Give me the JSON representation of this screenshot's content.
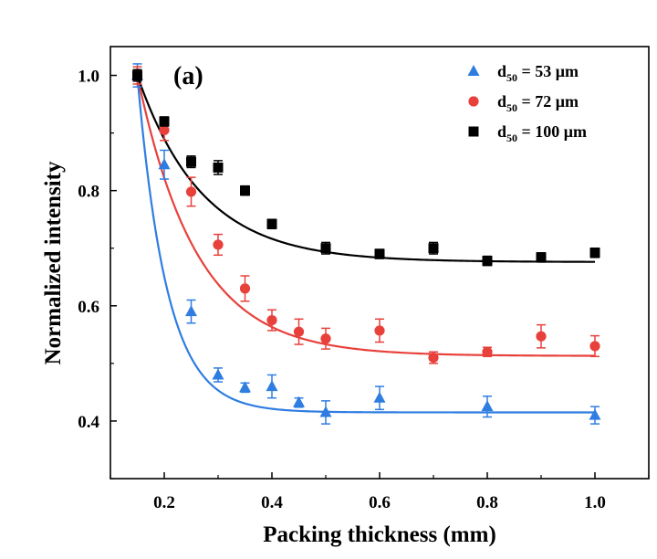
{
  "chart_data": {
    "type": "scatter",
    "panel_label": "(a)",
    "xlabel": "Packing thickness (mm)",
    "ylabel": "Normalized intensity",
    "xlim": [
      0.1,
      1.1
    ],
    "ylim": [
      0.3,
      1.05
    ],
    "x_ticks": [
      0.2,
      0.4,
      0.6,
      0.8,
      1.0
    ],
    "x_tick_labels": [
      "0.2",
      "0.4",
      "0.6",
      "0.8",
      "1.0"
    ],
    "y_ticks": [
      0.4,
      0.6,
      0.8,
      1.0
    ],
    "y_tick_labels": [
      "0.4",
      "0.6",
      "0.8",
      "1.0"
    ],
    "grid": false,
    "legend_position": "top-right",
    "series": [
      {
        "name_main": "d",
        "name_sub": "50",
        "name_rest": " = 53 μm",
        "marker": "triangle",
        "color": "#2f7de1",
        "x": [
          0.15,
          0.2,
          0.25,
          0.3,
          0.35,
          0.4,
          0.45,
          0.5,
          0.6,
          0.8,
          1.0
        ],
        "y": [
          1.0,
          0.845,
          0.59,
          0.48,
          0.458,
          0.46,
          0.432,
          0.415,
          0.44,
          0.425,
          0.41
        ],
        "err": [
          0.02,
          0.025,
          0.02,
          0.012,
          0.008,
          0.02,
          0.008,
          0.02,
          0.02,
          0.018,
          0.015
        ],
        "fit": {
          "y0": 0.415,
          "A": 0.585,
          "x0": 0.15,
          "t": 0.055
        }
      },
      {
        "name_main": "d",
        "name_sub": "50",
        "name_rest": " = 72 μm",
        "marker": "circle",
        "color": "#e8413c",
        "x": [
          0.15,
          0.2,
          0.25,
          0.3,
          0.35,
          0.4,
          0.45,
          0.5,
          0.6,
          0.7,
          0.8,
          0.9,
          1.0
        ],
        "y": [
          1.0,
          0.905,
          0.798,
          0.706,
          0.63,
          0.575,
          0.555,
          0.543,
          0.557,
          0.51,
          0.52,
          0.547,
          0.53
        ],
        "err": [
          0.015,
          0.018,
          0.025,
          0.018,
          0.022,
          0.018,
          0.022,
          0.018,
          0.02,
          0.01,
          0.008,
          0.02,
          0.018
        ],
        "fit": {
          "y0": 0.513,
          "A": 0.487,
          "x0": 0.15,
          "t": 0.11
        }
      },
      {
        "name_main": "d",
        "name_sub": "50",
        "name_rest": " = 100 μm",
        "marker": "square",
        "color": "#000000",
        "x": [
          0.15,
          0.2,
          0.25,
          0.3,
          0.35,
          0.4,
          0.5,
          0.6,
          0.7,
          0.8,
          0.9,
          1.0
        ],
        "y": [
          1.0,
          0.92,
          0.85,
          0.84,
          0.8,
          0.742,
          0.7,
          0.69,
          0.7,
          0.678,
          0.684,
          0.692
        ],
        "err": [
          0.01,
          0.008,
          0.01,
          0.012,
          0.008,
          0.008,
          0.01,
          0.008,
          0.01,
          0.008,
          0.008,
          0.008
        ],
        "fit": {
          "y0": 0.676,
          "A": 0.324,
          "x0": 0.15,
          "t": 0.12
        }
      }
    ]
  }
}
